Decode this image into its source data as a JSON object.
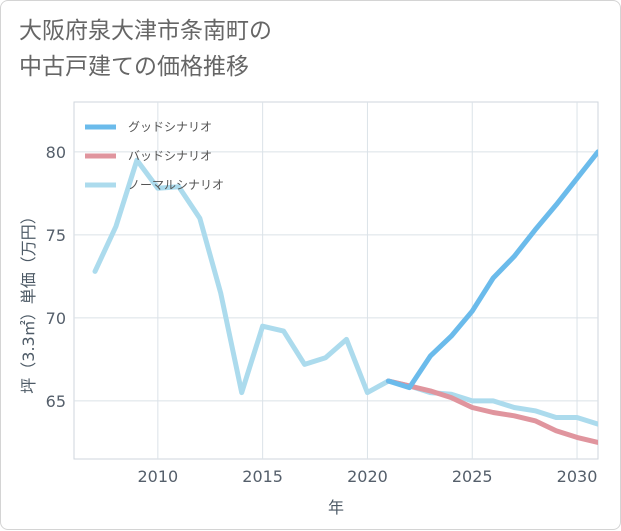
{
  "title": {
    "line1": "大阪府泉大津市条南町の",
    "line2": "中古戸建ての価格推移"
  },
  "chart_data": {
    "type": "line",
    "title": "大阪府泉大津市条南町の中古戸建ての価格推移",
    "xlabel": "年",
    "ylabel": "坪（3.3㎡）単価（万円）",
    "xlim": [
      2006,
      2031
    ],
    "ylim": [
      61.5,
      83
    ],
    "xticks": [
      2010,
      2015,
      2020,
      2025,
      2030
    ],
    "yticks": [
      65,
      70,
      75,
      80
    ],
    "grid": true,
    "legend_position": "top-left",
    "series": [
      {
        "name": "グッドシナリオ",
        "color": "#6bbbeb",
        "x": [
          2021,
          2022,
          2023,
          2024,
          2025,
          2026,
          2027,
          2028,
          2029,
          2030,
          2031
        ],
        "values": [
          66.2,
          65.8,
          67.7,
          68.9,
          70.4,
          72.4,
          73.7,
          75.3,
          76.8,
          78.4,
          80.0
        ]
      },
      {
        "name": "バッドシナリオ",
        "color": "#e0959e",
        "x": [
          2021,
          2022,
          2023,
          2024,
          2025,
          2026,
          2027,
          2028,
          2029,
          2030,
          2031
        ],
        "values": [
          66.2,
          65.9,
          65.6,
          65.2,
          64.6,
          64.3,
          64.1,
          63.8,
          63.2,
          62.8,
          62.5
        ]
      },
      {
        "name": "ノーマルシナリオ",
        "color": "#acdbed",
        "x": [
          2007,
          2008,
          2009,
          2010,
          2011,
          2012,
          2013,
          2014,
          2015,
          2016,
          2017,
          2018,
          2019,
          2020,
          2021,
          2022,
          2023,
          2024,
          2025,
          2026,
          2027,
          2028,
          2029,
          2030,
          2031
        ],
        "values": [
          72.8,
          75.5,
          79.5,
          77.8,
          77.9,
          76.0,
          71.5,
          65.5,
          69.5,
          69.2,
          67.2,
          67.6,
          68.7,
          65.5,
          66.2,
          65.9,
          65.5,
          65.4,
          65.0,
          65.0,
          64.6,
          64.4,
          64.0,
          64.0,
          63.6
        ]
      }
    ]
  }
}
